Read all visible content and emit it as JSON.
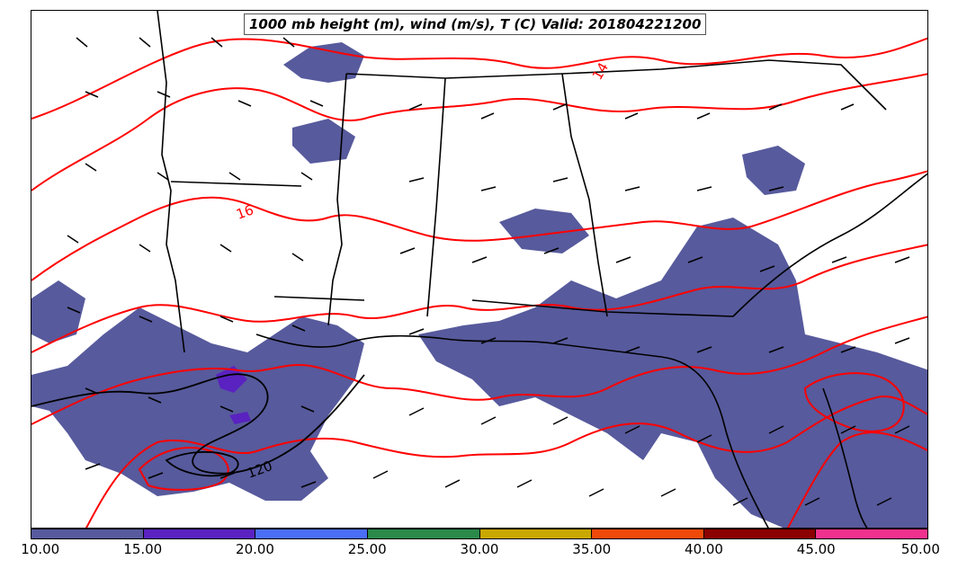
{
  "title": "1000 mb height (m), wind (m/s), T (C) Valid: 201804221200",
  "colorbar": {
    "colors": [
      "#575a9c",
      "#5a22c0",
      "#4a6ef5",
      "#2b8a4a",
      "#c9a800",
      "#f04a0a",
      "#8b0000",
      "#f0318e"
    ],
    "ticks": [
      "10.00",
      "15.00",
      "20.00",
      "25.00",
      "30.00",
      "35.00",
      "40.00",
      "45.00",
      "50.00"
    ]
  },
  "contour_labels": {
    "temp_16": "16",
    "temp_14": "14",
    "height_120": "120"
  },
  "map_colors": {
    "wind_fill": "#575a9c",
    "temperature": "#ff0000",
    "height": "#000000"
  }
}
